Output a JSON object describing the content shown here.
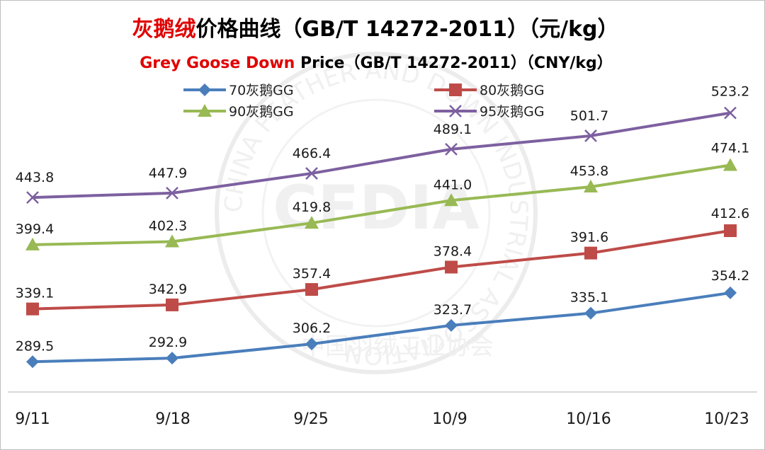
{
  "chart_data": {
    "type": "line",
    "title": {
      "highlight": "灰鹅绒",
      "rest": "价格曲线（GB/T 14272-2011）（元/kg）"
    },
    "subtitle": {
      "highlight": "Grey Goose Down",
      "rest": " Price（GB/T 14272-2011）（CNY/kg）"
    },
    "categories": [
      "9/11",
      "9/18",
      "9/25",
      "10/9",
      "10/16",
      "10/23"
    ],
    "series": [
      {
        "name": "70灰鹅GG",
        "values": [
          289.5,
          292.9,
          306.2,
          323.7,
          335.1,
          354.2
        ],
        "color": "#4a7ebb",
        "marker": "diamond"
      },
      {
        "name": "80灰鹅GG",
        "values": [
          339.1,
          342.9,
          357.4,
          378.4,
          391.6,
          412.6
        ],
        "color": "#be4b48",
        "marker": "square"
      },
      {
        "name": "90灰鹅GG",
        "values": [
          399.4,
          402.3,
          419.8,
          441.0,
          453.8,
          474.1
        ],
        "color": "#98b954",
        "marker": "triangle"
      },
      {
        "name": "95灰鹅GG",
        "values": [
          443.8,
          447.9,
          466.4,
          489.1,
          501.7,
          523.2
        ],
        "color": "#7d60a0",
        "marker": "x"
      }
    ],
    "ylim": [
      200,
      600
    ],
    "grid": false,
    "legend_position": "top",
    "colors": {
      "title_highlight": "#e00000",
      "title_text": "#000000",
      "axis": "#d9d9d9"
    },
    "watermark": {
      "brand": "CFDIA",
      "ring_text": "CHINA FEATHER AND DOWN INDUSTRIAL ASSOCIATION",
      "bottom_text": "中国羽绒工业协会"
    }
  }
}
